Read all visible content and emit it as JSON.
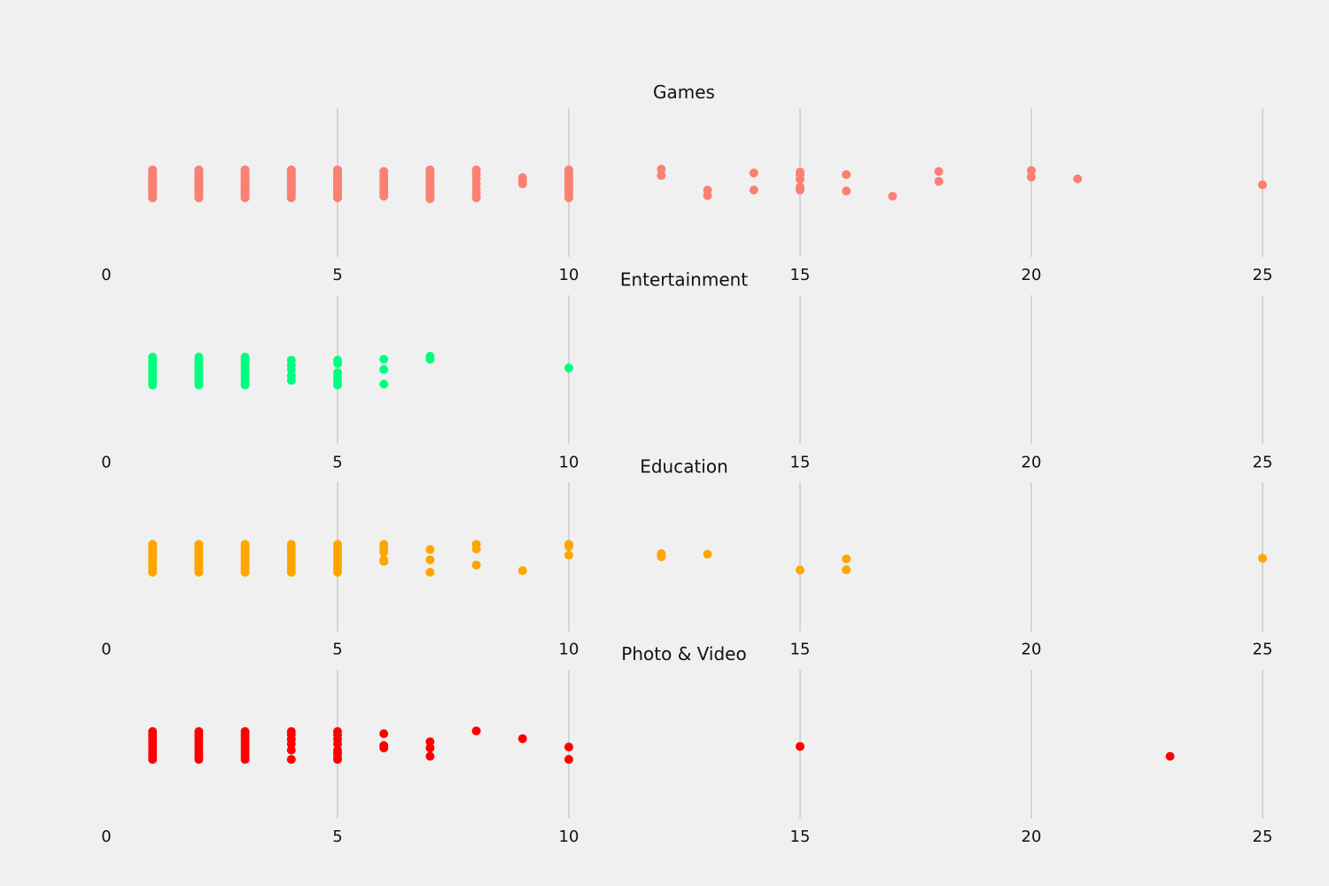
{
  "chart_data": {
    "type": "scatter",
    "xlim": [
      0,
      25
    ],
    "xticks": [
      "0",
      "5",
      "10",
      "15",
      "20",
      "25"
    ],
    "grid": "vertical",
    "panels": [
      {
        "title": "Games",
        "color": "#fa8072",
        "points": [
          [
            1,
            0.95
          ],
          [
            1,
            0.9
          ],
          [
            1,
            0.85
          ],
          [
            1,
            0.8
          ],
          [
            1,
            0.75
          ],
          [
            1,
            0.7
          ],
          [
            1,
            0.65
          ],
          [
            1,
            0.6
          ],
          [
            1,
            0.55
          ],
          [
            1,
            0.5
          ],
          [
            1,
            0.45
          ],
          [
            1,
            0.4
          ],
          [
            1,
            0.35
          ],
          [
            1,
            0.3
          ],
          [
            1,
            0.25
          ],
          [
            1,
            0.2
          ],
          [
            1,
            0.15
          ],
          [
            1,
            0.1
          ],
          [
            1,
            0.05
          ],
          [
            2,
            0.95
          ],
          [
            2,
            0.9
          ],
          [
            2,
            0.85
          ],
          [
            2,
            0.8
          ],
          [
            2,
            0.75
          ],
          [
            2,
            0.7
          ],
          [
            2,
            0.65
          ],
          [
            2,
            0.6
          ],
          [
            2,
            0.55
          ],
          [
            2,
            0.5
          ],
          [
            2,
            0.45
          ],
          [
            2,
            0.4
          ],
          [
            2,
            0.35
          ],
          [
            2,
            0.3
          ],
          [
            2,
            0.25
          ],
          [
            2,
            0.2
          ],
          [
            2,
            0.15
          ],
          [
            2,
            0.1
          ],
          [
            2,
            0.05
          ],
          [
            3,
            0.95
          ],
          [
            3,
            0.9
          ],
          [
            3,
            0.85
          ],
          [
            3,
            0.8
          ],
          [
            3,
            0.75
          ],
          [
            3,
            0.7
          ],
          [
            3,
            0.65
          ],
          [
            3,
            0.6
          ],
          [
            3,
            0.55
          ],
          [
            3,
            0.5
          ],
          [
            3,
            0.45
          ],
          [
            3,
            0.4
          ],
          [
            3,
            0.35
          ],
          [
            3,
            0.3
          ],
          [
            3,
            0.25
          ],
          [
            3,
            0.2
          ],
          [
            3,
            0.15
          ],
          [
            3,
            0.1
          ],
          [
            3,
            0.05
          ],
          [
            4,
            0.95
          ],
          [
            4,
            0.9
          ],
          [
            4,
            0.85
          ],
          [
            4,
            0.8
          ],
          [
            4,
            0.75
          ],
          [
            4,
            0.7
          ],
          [
            4,
            0.65
          ],
          [
            4,
            0.6
          ],
          [
            4,
            0.55
          ],
          [
            4,
            0.5
          ],
          [
            4,
            0.45
          ],
          [
            4,
            0.4
          ],
          [
            4,
            0.35
          ],
          [
            4,
            0.3
          ],
          [
            4,
            0.25
          ],
          [
            4,
            0.2
          ],
          [
            4,
            0.15
          ],
          [
            4,
            0.1
          ],
          [
            4,
            0.05
          ],
          [
            5,
            0.95
          ],
          [
            5,
            0.9
          ],
          [
            5,
            0.85
          ],
          [
            5,
            0.8
          ],
          [
            5,
            0.75
          ],
          [
            5,
            0.7
          ],
          [
            5,
            0.65
          ],
          [
            5,
            0.6
          ],
          [
            5,
            0.55
          ],
          [
            5,
            0.5
          ],
          [
            5,
            0.45
          ],
          [
            5,
            0.4
          ],
          [
            5,
            0.35
          ],
          [
            5,
            0.3
          ],
          [
            5,
            0.25
          ],
          [
            5,
            0.2
          ],
          [
            5,
            0.15
          ],
          [
            5,
            0.1
          ],
          [
            5,
            0.05
          ],
          [
            6,
            0.9
          ],
          [
            6,
            0.8
          ],
          [
            6,
            0.7
          ],
          [
            6,
            0.6
          ],
          [
            6,
            0.5
          ],
          [
            6,
            0.4
          ],
          [
            6,
            0.3
          ],
          [
            6,
            0.2
          ],
          [
            6,
            0.1
          ],
          [
            7,
            0.95
          ],
          [
            7,
            0.88
          ],
          [
            7,
            0.8
          ],
          [
            7,
            0.72
          ],
          [
            7,
            0.64
          ],
          [
            7,
            0.56
          ],
          [
            7,
            0.48
          ],
          [
            7,
            0.4
          ],
          [
            7,
            0.32
          ],
          [
            7,
            0.24
          ],
          [
            7,
            0.16
          ],
          [
            7,
            0.08
          ],
          [
            7,
            0.02
          ],
          [
            8,
            0.95
          ],
          [
            8,
            0.8
          ],
          [
            8,
            0.65
          ],
          [
            8,
            0.5
          ],
          [
            8,
            0.35
          ],
          [
            8,
            0.2
          ],
          [
            8,
            0.05
          ],
          [
            9,
            0.7
          ],
          [
            9,
            0.6
          ],
          [
            9,
            0.5
          ],
          [
            10,
            0.95
          ],
          [
            10,
            0.85
          ],
          [
            10,
            0.75
          ],
          [
            10,
            0.65
          ],
          [
            10,
            0.55
          ],
          [
            10,
            0.45
          ],
          [
            10,
            0.35
          ],
          [
            10,
            0.25
          ],
          [
            10,
            0.15
          ],
          [
            10,
            0.05
          ],
          [
            12,
            0.97
          ],
          [
            12,
            0.77
          ],
          [
            13,
            0.3
          ],
          [
            13,
            0.12
          ],
          [
            14,
            0.85
          ],
          [
            14,
            0.3
          ],
          [
            15,
            0.88
          ],
          [
            15,
            0.8
          ],
          [
            15,
            0.65
          ],
          [
            15,
            0.4
          ],
          [
            15,
            0.3
          ],
          [
            16,
            0.8
          ],
          [
            16,
            0.27
          ],
          [
            17,
            0.1
          ],
          [
            18,
            0.9
          ],
          [
            18,
            0.58
          ],
          [
            20,
            0.93
          ],
          [
            20,
            0.72
          ],
          [
            21,
            0.66
          ],
          [
            25,
            0.47
          ]
        ]
      },
      {
        "title": "Entertainment",
        "color": "#00ff7f",
        "points": [
          [
            1,
            0.95
          ],
          [
            1,
            0.85
          ],
          [
            1,
            0.75
          ],
          [
            1,
            0.65
          ],
          [
            1,
            0.55
          ],
          [
            1,
            0.45
          ],
          [
            1,
            0.35
          ],
          [
            1,
            0.25
          ],
          [
            1,
            0.15
          ],
          [
            1,
            0.05
          ],
          [
            2,
            0.95
          ],
          [
            2,
            0.85
          ],
          [
            2,
            0.75
          ],
          [
            2,
            0.65
          ],
          [
            2,
            0.55
          ],
          [
            2,
            0.45
          ],
          [
            2,
            0.35
          ],
          [
            2,
            0.25
          ],
          [
            2,
            0.15
          ],
          [
            2,
            0.05
          ],
          [
            3,
            0.95
          ],
          [
            3,
            0.85
          ],
          [
            3,
            0.75
          ],
          [
            3,
            0.65
          ],
          [
            3,
            0.55
          ],
          [
            3,
            0.45
          ],
          [
            3,
            0.35
          ],
          [
            3,
            0.25
          ],
          [
            3,
            0.15
          ],
          [
            3,
            0.05
          ],
          [
            4,
            0.85
          ],
          [
            4,
            0.7
          ],
          [
            4,
            0.55
          ],
          [
            4,
            0.35
          ],
          [
            4,
            0.2
          ],
          [
            5,
            0.85
          ],
          [
            5,
            0.75
          ],
          [
            5,
            0.45
          ],
          [
            5,
            0.3
          ],
          [
            5,
            0.15
          ],
          [
            5,
            0.05
          ],
          [
            6,
            0.88
          ],
          [
            6,
            0.55
          ],
          [
            6,
            0.08
          ],
          [
            7,
            0.98
          ],
          [
            7,
            0.88
          ],
          [
            10,
            0.6
          ]
        ]
      },
      {
        "title": "Education",
        "color": "#ffa500",
        "points": [
          [
            1,
            0.95
          ],
          [
            1,
            0.85
          ],
          [
            1,
            0.75
          ],
          [
            1,
            0.65
          ],
          [
            1,
            0.55
          ],
          [
            1,
            0.45
          ],
          [
            1,
            0.35
          ],
          [
            1,
            0.25
          ],
          [
            1,
            0.15
          ],
          [
            1,
            0.05
          ],
          [
            2,
            0.95
          ],
          [
            2,
            0.85
          ],
          [
            2,
            0.75
          ],
          [
            2,
            0.65
          ],
          [
            2,
            0.55
          ],
          [
            2,
            0.45
          ],
          [
            2,
            0.35
          ],
          [
            2,
            0.25
          ],
          [
            2,
            0.15
          ],
          [
            2,
            0.05
          ],
          [
            3,
            0.95
          ],
          [
            3,
            0.85
          ],
          [
            3,
            0.75
          ],
          [
            3,
            0.65
          ],
          [
            3,
            0.55
          ],
          [
            3,
            0.45
          ],
          [
            3,
            0.35
          ],
          [
            3,
            0.25
          ],
          [
            3,
            0.15
          ],
          [
            3,
            0.05
          ],
          [
            4,
            0.95
          ],
          [
            4,
            0.85
          ],
          [
            4,
            0.75
          ],
          [
            4,
            0.65
          ],
          [
            4,
            0.55
          ],
          [
            4,
            0.45
          ],
          [
            4,
            0.35
          ],
          [
            4,
            0.25
          ],
          [
            4,
            0.15
          ],
          [
            4,
            0.05
          ],
          [
            5,
            0.95
          ],
          [
            5,
            0.85
          ],
          [
            5,
            0.75
          ],
          [
            5,
            0.65
          ],
          [
            5,
            0.55
          ],
          [
            5,
            0.45
          ],
          [
            5,
            0.35
          ],
          [
            5,
            0.25
          ],
          [
            5,
            0.15
          ],
          [
            5,
            0.05
          ],
          [
            6,
            0.95
          ],
          [
            6,
            0.85
          ],
          [
            6,
            0.7
          ],
          [
            6,
            0.45
          ],
          [
            6,
            0.4
          ],
          [
            7,
            0.78
          ],
          [
            7,
            0.45
          ],
          [
            7,
            0.05
          ],
          [
            8,
            0.95
          ],
          [
            8,
            0.8
          ],
          [
            8,
            0.28
          ],
          [
            9,
            0.1
          ],
          [
            10,
            0.95
          ],
          [
            10,
            0.88
          ],
          [
            10,
            0.6
          ],
          [
            12,
            0.65
          ],
          [
            12,
            0.55
          ],
          [
            13,
            0.63
          ],
          [
            15,
            0.12
          ],
          [
            16,
            0.48
          ],
          [
            16,
            0.13
          ],
          [
            25,
            0.5
          ]
        ]
      },
      {
        "title": "Photo & Video",
        "color": "#ff0000",
        "points": [
          [
            1,
            0.95
          ],
          [
            1,
            0.85
          ],
          [
            1,
            0.75
          ],
          [
            1,
            0.65
          ],
          [
            1,
            0.55
          ],
          [
            1,
            0.45
          ],
          [
            1,
            0.35
          ],
          [
            1,
            0.25
          ],
          [
            1,
            0.15
          ],
          [
            1,
            0.05
          ],
          [
            2,
            0.95
          ],
          [
            2,
            0.85
          ],
          [
            2,
            0.75
          ],
          [
            2,
            0.65
          ],
          [
            2,
            0.55
          ],
          [
            2,
            0.45
          ],
          [
            2,
            0.35
          ],
          [
            2,
            0.25
          ],
          [
            2,
            0.15
          ],
          [
            2,
            0.05
          ],
          [
            3,
            0.95
          ],
          [
            3,
            0.85
          ],
          [
            3,
            0.75
          ],
          [
            3,
            0.65
          ],
          [
            3,
            0.55
          ],
          [
            3,
            0.45
          ],
          [
            3,
            0.35
          ],
          [
            3,
            0.25
          ],
          [
            3,
            0.15
          ],
          [
            3,
            0.05
          ],
          [
            4,
            0.95
          ],
          [
            4,
            0.85
          ],
          [
            4,
            0.7
          ],
          [
            4,
            0.55
          ],
          [
            4,
            0.35
          ],
          [
            4,
            0.05
          ],
          [
            5,
            0.95
          ],
          [
            5,
            0.85
          ],
          [
            5,
            0.7
          ],
          [
            5,
            0.55
          ],
          [
            5,
            0.35
          ],
          [
            5,
            0.25
          ],
          [
            5,
            0.12
          ],
          [
            5,
            0.05
          ],
          [
            6,
            0.88
          ],
          [
            6,
            0.5
          ],
          [
            6,
            0.42
          ],
          [
            7,
            0.62
          ],
          [
            7,
            0.42
          ],
          [
            7,
            0.15
          ],
          [
            8,
            0.97
          ],
          [
            9,
            0.72
          ],
          [
            10,
            0.45
          ],
          [
            10,
            0.05
          ],
          [
            15,
            0.47
          ],
          [
            23,
            0.15
          ]
        ]
      }
    ]
  }
}
